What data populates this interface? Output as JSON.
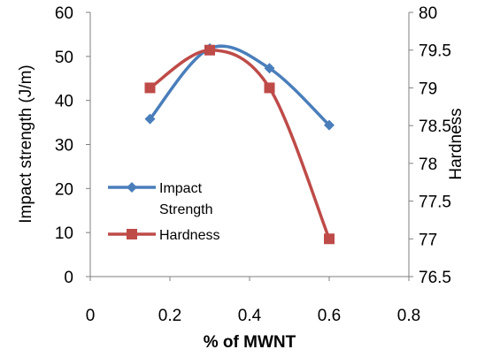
{
  "chart_data": {
    "type": "line",
    "xlabel": "% of MWNT",
    "ylabel_left": "Impact  strength (J/m)",
    "ylabel_right": "Hardness",
    "xlim": [
      0,
      0.8
    ],
    "ylim_left": [
      0,
      60
    ],
    "ylim_right": [
      76.5,
      80
    ],
    "x_ticks": [
      "0",
      "0.2",
      "0.4",
      "0.6",
      "0.8"
    ],
    "y_ticks_left": [
      "0",
      "10",
      "20",
      "30",
      "40",
      "50",
      "60"
    ],
    "y_ticks_right": [
      "76.5",
      "77",
      "77.5",
      "78",
      "78.5",
      "79",
      "79.5",
      "80"
    ],
    "grid": false,
    "legend_position": "lower-left",
    "series": [
      {
        "name": "Impact Strength",
        "legend_lines": [
          "Impact",
          "Strength"
        ],
        "axis": "left",
        "marker": "diamond",
        "color": "#4a7ebb",
        "x": [
          0.15,
          0.3,
          0.45,
          0.6
        ],
        "y": [
          35.8,
          51.8,
          47.3,
          34.4
        ]
      },
      {
        "name": "Hardness",
        "legend_lines": [
          "Hardness"
        ],
        "axis": "right",
        "marker": "square",
        "color": "#be4b48",
        "x": [
          0.15,
          0.3,
          0.45,
          0.6
        ],
        "y": [
          79.0,
          79.5,
          79.0,
          77.0
        ]
      }
    ]
  }
}
